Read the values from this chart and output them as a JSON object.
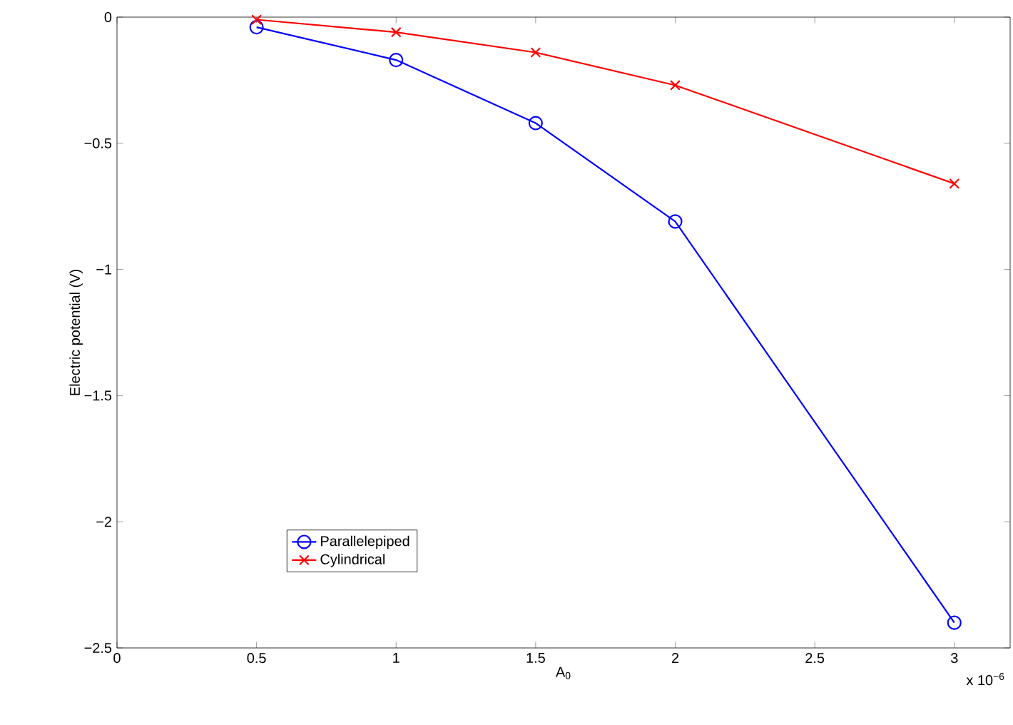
{
  "chart_data": {
    "type": "line",
    "xlabel": "A$_{0}$",
    "ylabel": "Electric potential (V)",
    "x": [
      0.5,
      1,
      1.5,
      2,
      3
    ],
    "series": [
      {
        "name": "Parallelepiped",
        "color": "#0000ff",
        "marker": "circle",
        "values": [
          -0.04,
          -0.17,
          -0.42,
          -0.81,
          -2.4
        ]
      },
      {
        "name": "Cylindrical",
        "color": "#ff0000",
        "marker": "cross",
        "values": [
          -0.01,
          -0.06,
          -0.14,
          -0.27,
          -0.66
        ]
      }
    ],
    "xlim": [
      0,
      3.2
    ],
    "ylim": [
      -2.5,
      0
    ],
    "xticks": [
      0,
      0.5,
      1,
      1.5,
      2,
      2.5,
      3
    ],
    "yticks": [
      {
        "value": -2.5,
        "label": "−2.5"
      },
      {
        "value": -2,
        "label": "−2"
      },
      {
        "value": -1.5,
        "label": "−1.5"
      },
      {
        "value": -1,
        "label": "−1"
      },
      {
        "value": -0.5,
        "label": "−0.5"
      },
      0
    ],
    "legend": "bottom left",
    "grid": false,
    "annotations": [
      "x 10$^{−6}$"
    ]
  }
}
